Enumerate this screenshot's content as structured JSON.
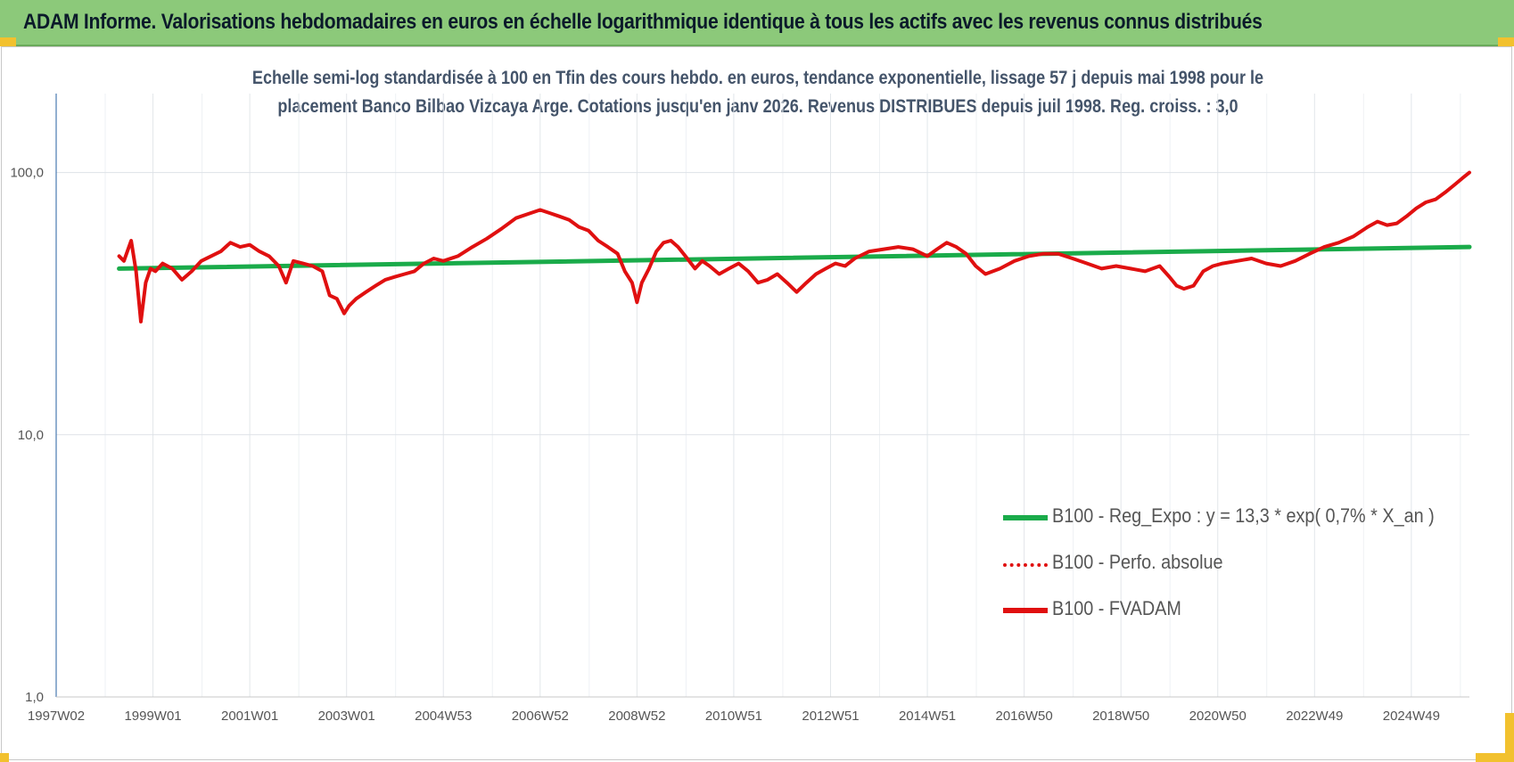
{
  "banner": {
    "title": "ADAM Informe. Valorisations hebdomadaires en euros en échelle logarithmique identique à tous les actifs avec les revenus connus distribués"
  },
  "colors": {
    "banner_bg": "#8cc97a",
    "trend_line": "#1aab4a",
    "price_line": "#e01010",
    "corner_accent": "#f2c12e"
  },
  "chart_data": {
    "type": "line",
    "title_line1": "Echelle semi-log standardisée à 100 en Tfin des cours hebdo. en euros, tendance exponentielle, lissage 57 j depuis mai 1998 pour le",
    "title_line2": "placement Banco Bilbao Vizcaya Arge. Cotations jusqu'en janv 2026. Revenus DISTRIBUES depuis juil 1998. Reg. croiss. : 3,0",
    "y_scale": "log",
    "ylim": [
      1,
      200
    ],
    "y_ticks": [
      "1,0",
      "10,0",
      "100,0"
    ],
    "y_tick_values": [
      1,
      10,
      100
    ],
    "x_range": [
      1997.0,
      2026.2
    ],
    "x_ticks": [
      "1997W02",
      "1999W01",
      "2001W01",
      "2003W01",
      "2004W53",
      "2006W52",
      "2008W52",
      "2010W51",
      "2012W51",
      "2014W51",
      "2016W50",
      "2018W50",
      "2020W50",
      "2022W49",
      "2024W49"
    ],
    "x_tick_values": [
      1997.0,
      1999.0,
      2001.0,
      2003.0,
      2005.0,
      2007.0,
      2009.0,
      2011.0,
      2013.0,
      2015.0,
      2017.0,
      2019.0,
      2021.0,
      2023.0,
      2025.0
    ],
    "grid": true,
    "legend_position": "bottom-right",
    "legend": [
      "B100 - Reg_Expo : y = 13,3 * exp( 0,7% *  X_an )",
      "B100 - Perfo. absolue",
      "B100 - FVADAM"
    ],
    "series": [
      {
        "name": "B100 - Reg_Expo : y = 13,3 * exp( 0,7% *  X_an )",
        "x": [
          1998.3,
          2026.2
        ],
        "y": [
          43,
          52
        ]
      },
      {
        "name": "B100 - FVADAM",
        "x": [
          1998.3,
          1998.4,
          1998.55,
          1998.65,
          1998.75,
          1998.85,
          1998.95,
          1999.05,
          1999.2,
          1999.4,
          1999.6,
          1999.8,
          2000.0,
          2000.2,
          2000.4,
          2000.6,
          2000.8,
          2001.0,
          2001.2,
          2001.4,
          2001.6,
          2001.75,
          2001.9,
          2002.1,
          2002.3,
          2002.5,
          2002.65,
          2002.8,
          2002.95,
          2003.05,
          2003.2,
          2003.4,
          2003.6,
          2003.8,
          2004.0,
          2004.2,
          2004.4,
          2004.6,
          2004.8,
          2005.0,
          2005.3,
          2005.6,
          2005.9,
          2006.2,
          2006.5,
          2006.8,
          2007.0,
          2007.2,
          2007.4,
          2007.6,
          2007.8,
          2008.0,
          2008.2,
          2008.4,
          2008.6,
          2008.75,
          2008.9,
          2009.0,
          2009.1,
          2009.25,
          2009.4,
          2009.55,
          2009.7,
          2009.85,
          2010.0,
          2010.2,
          2010.35,
          2010.5,
          2010.7,
          2010.9,
          2011.1,
          2011.3,
          2011.5,
          2011.7,
          2011.9,
          2012.1,
          2012.3,
          2012.5,
          2012.7,
          2012.9,
          2013.1,
          2013.3,
          2013.5,
          2013.8,
          2014.1,
          2014.4,
          2014.7,
          2015.0,
          2015.2,
          2015.4,
          2015.6,
          2015.8,
          2016.0,
          2016.2,
          2016.5,
          2016.8,
          2017.1,
          2017.4,
          2017.7,
          2018.0,
          2018.3,
          2018.6,
          2018.9,
          2019.2,
          2019.5,
          2019.8,
          2020.0,
          2020.15,
          2020.3,
          2020.5,
          2020.7,
          2020.9,
          2021.1,
          2021.4,
          2021.7,
          2022.0,
          2022.3,
          2022.6,
          2022.9,
          2023.2,
          2023.5,
          2023.8,
          2024.1,
          2024.3,
          2024.5,
          2024.7,
          2024.9,
          2025.1,
          2025.3,
          2025.5,
          2025.7,
          2025.9,
          2026.05,
          2026.2
        ],
        "y": [
          48,
          46,
          55,
          42,
          27,
          38,
          43,
          42,
          45,
          43,
          39,
          42,
          46,
          48,
          50,
          54,
          52,
          53,
          50,
          48,
          44,
          38,
          46,
          45,
          44,
          42,
          34,
          33,
          29,
          31,
          33,
          35,
          37,
          39,
          40,
          41,
          42,
          45,
          47,
          46,
          48,
          52,
          56,
          61,
          67,
          70,
          72,
          70,
          68,
          66,
          62,
          60,
          55,
          52,
          49,
          42,
          38,
          32,
          38,
          43,
          50,
          54,
          55,
          52,
          48,
          43,
          46,
          44,
          41,
          43,
          45,
          42,
          38,
          39,
          41,
          38,
          35,
          38,
          41,
          43,
          45,
          44,
          47,
          50,
          51,
          52,
          51,
          48,
          51,
          54,
          52,
          49,
          44,
          41,
          43,
          46,
          48,
          49,
          49,
          47,
          45,
          43,
          44,
          43,
          42,
          44,
          40,
          37,
          36,
          37,
          42,
          44,
          45,
          46,
          47,
          45,
          44,
          46,
          49,
          52,
          54,
          57,
          62,
          65,
          63,
          64,
          68,
          73,
          77,
          79,
          84,
          90,
          95,
          100
        ]
      }
    ]
  }
}
